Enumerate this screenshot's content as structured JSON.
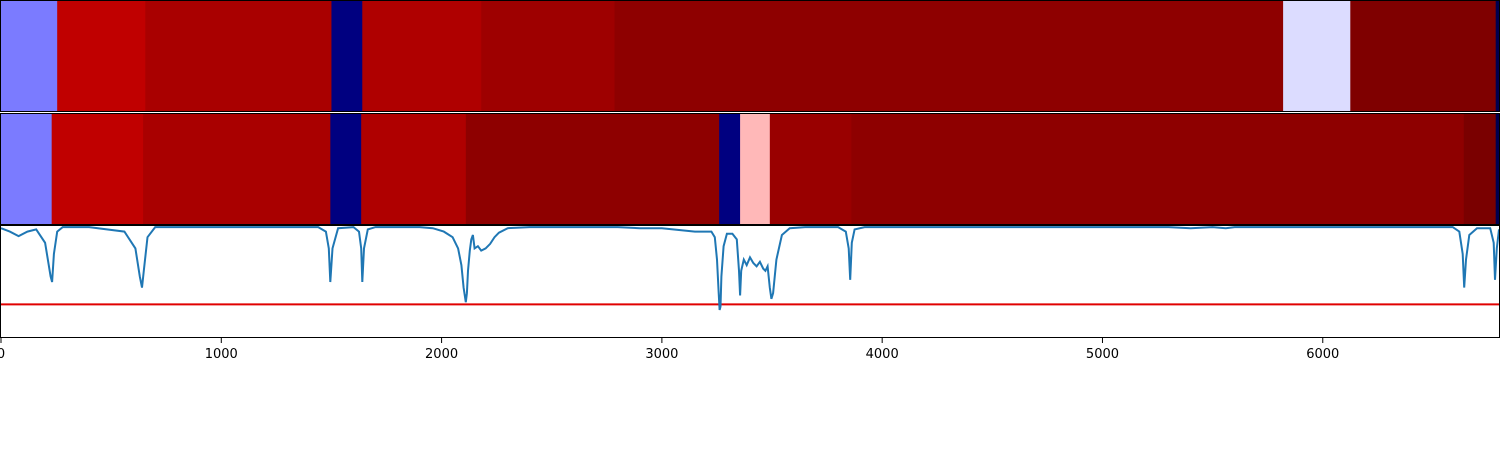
{
  "chart_data": {
    "type": "heatmap",
    "xlim": [
      0,
      6800
    ],
    "x_ticks": [
      "0",
      "1000",
      "2000",
      "3000",
      "4000",
      "5000",
      "6000"
    ],
    "tracks": [
      {
        "segments": [
          {
            "start": 0,
            "end": 255,
            "color": "#7b7bff"
          },
          {
            "start": 255,
            "end": 655,
            "color": "#c00000"
          },
          {
            "start": 655,
            "end": 1500,
            "color": "#a90000"
          },
          {
            "start": 1500,
            "end": 1640,
            "color": "#000080"
          },
          {
            "start": 1640,
            "end": 2180,
            "color": "#af0000"
          },
          {
            "start": 2180,
            "end": 2785,
            "color": "#9e0000"
          },
          {
            "start": 2785,
            "end": 5820,
            "color": "#8e0000"
          },
          {
            "start": 5820,
            "end": 6125,
            "color": "#dcdcff"
          },
          {
            "start": 6125,
            "end": 6785,
            "color": "#7f0000"
          },
          {
            "start": 6785,
            "end": 6800,
            "color": "#000050"
          }
        ]
      },
      {
        "segments": [
          {
            "start": 0,
            "end": 230,
            "color": "#7b7bff"
          },
          {
            "start": 230,
            "end": 645,
            "color": "#c00000"
          },
          {
            "start": 645,
            "end": 1495,
            "color": "#a90000"
          },
          {
            "start": 1495,
            "end": 1635,
            "color": "#000080"
          },
          {
            "start": 1635,
            "end": 2110,
            "color": "#af0000"
          },
          {
            "start": 2110,
            "end": 3260,
            "color": "#8e0000"
          },
          {
            "start": 3260,
            "end": 3355,
            "color": "#000080"
          },
          {
            "start": 3355,
            "end": 3490,
            "color": "#ffb8b8"
          },
          {
            "start": 3490,
            "end": 3860,
            "color": "#990000"
          },
          {
            "start": 3860,
            "end": 6640,
            "color": "#8e0000"
          },
          {
            "start": 6640,
            "end": 6785,
            "color": "#7a0000"
          },
          {
            "start": 6785,
            "end": 6800,
            "color": "#000050"
          }
        ]
      }
    ],
    "line_panel": {
      "ylim": [
        -1.0,
        0.0
      ],
      "threshold": -0.7,
      "line_color": "#1f77b4",
      "threshold_color": "#e00000",
      "x": [
        0,
        40,
        80,
        120,
        160,
        200,
        225,
        232,
        240,
        255,
        280,
        400,
        560,
        610,
        630,
        640,
        648,
        665,
        700,
        900,
        1200,
        1440,
        1475,
        1488,
        1495,
        1505,
        1530,
        1600,
        1625,
        1635,
        1640,
        1648,
        1665,
        1700,
        1800,
        1900,
        1960,
        2010,
        2050,
        2075,
        2090,
        2100,
        2110,
        2115,
        2120,
        2128,
        2135,
        2142,
        2150,
        2165,
        2180,
        2200,
        2220,
        2240,
        2260,
        2300,
        2400,
        2600,
        2800,
        2900,
        3000,
        3050,
        3100,
        3150,
        3200,
        3225,
        3240,
        3250,
        3258,
        3262,
        3266,
        3270,
        3280,
        3295,
        3320,
        3340,
        3350,
        3355,
        3360,
        3372,
        3385,
        3400,
        3415,
        3430,
        3445,
        3460,
        3470,
        3480,
        3490,
        3497,
        3505,
        3520,
        3545,
        3580,
        3650,
        3800,
        3835,
        3848,
        3855,
        3862,
        3875,
        3920,
        4200,
        4700,
        5300,
        5400,
        5500,
        5560,
        5600,
        5900,
        6300,
        6590,
        6620,
        6635,
        6642,
        6650,
        6665,
        6700,
        6760,
        6776,
        6782,
        6790,
        6800
      ],
      "y": [
        -0.02,
        -0.05,
        -0.09,
        -0.05,
        -0.03,
        -0.15,
        -0.45,
        -0.5,
        -0.25,
        -0.05,
        -0.01,
        -0.01,
        -0.05,
        -0.2,
        -0.45,
        -0.55,
        -0.4,
        -0.1,
        -0.01,
        -0.01,
        -0.01,
        -0.01,
        -0.05,
        -0.2,
        -0.5,
        -0.2,
        -0.02,
        -0.01,
        -0.05,
        -0.2,
        -0.5,
        -0.2,
        -0.03,
        -0.01,
        -0.01,
        -0.01,
        -0.02,
        -0.05,
        -0.1,
        -0.2,
        -0.35,
        -0.55,
        -0.68,
        -0.6,
        -0.4,
        -0.22,
        -0.12,
        -0.08,
        -0.2,
        -0.18,
        -0.22,
        -0.2,
        -0.16,
        -0.1,
        -0.06,
        -0.02,
        -0.01,
        -0.01,
        -0.01,
        -0.02,
        -0.02,
        -0.03,
        -0.04,
        -0.05,
        -0.05,
        -0.05,
        -0.1,
        -0.3,
        -0.6,
        -0.75,
        -0.72,
        -0.45,
        -0.18,
        -0.07,
        -0.07,
        -0.12,
        -0.4,
        -0.62,
        -0.4,
        -0.3,
        -0.35,
        -0.28,
        -0.33,
        -0.36,
        -0.32,
        -0.38,
        -0.4,
        -0.36,
        -0.55,
        -0.65,
        -0.6,
        -0.3,
        -0.08,
        -0.02,
        -0.01,
        -0.01,
        -0.05,
        -0.2,
        -0.48,
        -0.15,
        -0.03,
        -0.01,
        -0.01,
        -0.01,
        -0.01,
        -0.02,
        -0.01,
        -0.02,
        -0.01,
        -0.01,
        -0.01,
        -0.01,
        -0.05,
        -0.25,
        -0.55,
        -0.3,
        -0.08,
        -0.02,
        -0.02,
        -0.15,
        -0.48,
        -0.2,
        -0.03
      ]
    }
  }
}
